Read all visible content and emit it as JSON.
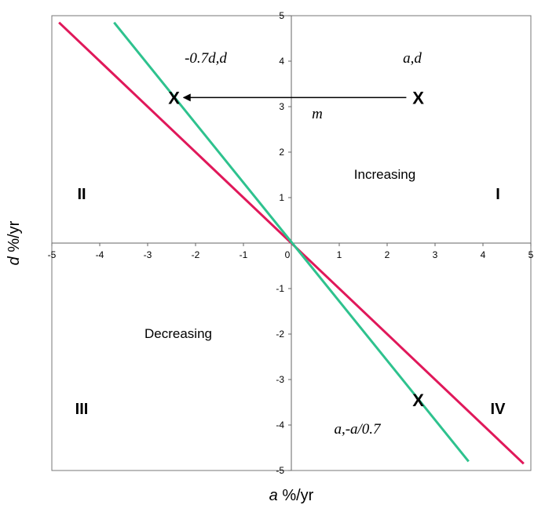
{
  "chart_data": {
    "type": "line",
    "xlabel_var": "a",
    "xlabel_unit": " %/yr",
    "ylabel_var": "d",
    "ylabel_unit": " %/yr",
    "xlim": [
      -5,
      5
    ],
    "ylim": [
      -5,
      5
    ],
    "xticks": [
      "-5",
      "-4",
      "-3",
      "-2",
      "-1",
      "0",
      "1",
      "2",
      "3",
      "4",
      "5"
    ],
    "yticks": [
      "-5",
      "-4",
      "-3",
      "-2",
      "-1",
      "0",
      "1",
      "2",
      "3",
      "4",
      "5"
    ],
    "grid": false,
    "series": [
      {
        "color": "#e0185a",
        "x": [
          -4.85,
          4.85
        ],
        "y": [
          4.85,
          -4.85
        ]
      },
      {
        "color": "#2ec28e",
        "x": [
          -3.7,
          3.7
        ],
        "y": [
          4.85,
          -4.8
        ]
      }
    ],
    "quadrant_labels": [
      "I",
      "II",
      "III",
      "IV"
    ],
    "regions": {
      "increasing": "Increasing",
      "decreasing": "Decreasing"
    },
    "annotations": {
      "top_right": "a,d",
      "top_left": "-0.7d,d",
      "bottom_right": "a,-a/0.7",
      "arrow_label": "m",
      "marker": "X"
    },
    "markers": [
      {
        "x": 2.65,
        "y": 3.2
      },
      {
        "x": -2.45,
        "y": 3.2
      },
      {
        "x": 2.65,
        "y": -3.45
      }
    ],
    "arrow": {
      "from": [
        2.4,
        3.2
      ],
      "to": [
        -2.25,
        3.2
      ]
    }
  }
}
